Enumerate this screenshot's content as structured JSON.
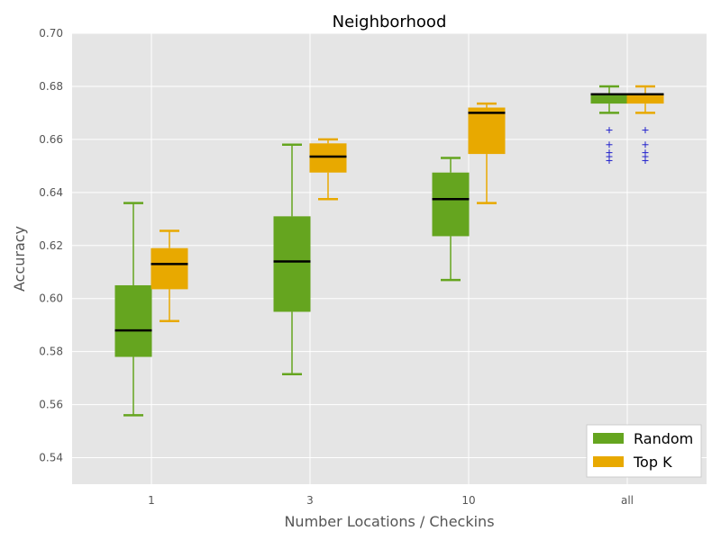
{
  "chart_data": {
    "type": "boxplot",
    "title": "Neighborhood",
    "xlabel": "Number Locations / Checkins",
    "ylabel": "Accuracy",
    "categories": [
      "1",
      "3",
      "10",
      "all"
    ],
    "ylim": [
      0.53,
      0.7
    ],
    "yticks": [
      0.54,
      0.56,
      0.58,
      0.6,
      0.62,
      0.64,
      0.66,
      0.68,
      0.7
    ],
    "ytick_labels": [
      "0.54",
      "0.56",
      "0.58",
      "0.60",
      "0.62",
      "0.64",
      "0.66",
      "0.68",
      "0.70"
    ],
    "grid": true,
    "legend_position": "bottom-right",
    "series": [
      {
        "name": "Random",
        "color": "#65a51f",
        "boxes": [
          {
            "whislo": 0.556,
            "q1": 0.578,
            "med": 0.588,
            "q3": 0.605,
            "whishi": 0.636,
            "fliers": []
          },
          {
            "whislo": 0.5715,
            "q1": 0.595,
            "med": 0.614,
            "q3": 0.631,
            "whishi": 0.658,
            "fliers": []
          },
          {
            "whislo": 0.607,
            "q1": 0.6235,
            "med": 0.6375,
            "q3": 0.6475,
            "whishi": 0.653,
            "fliers": []
          },
          {
            "whislo": 0.67,
            "q1": 0.6735,
            "med": 0.677,
            "q3": 0.677,
            "whishi": 0.68,
            "fliers": [
              0.6635,
              0.658,
              0.655,
              0.6535,
              0.652
            ]
          }
        ]
      },
      {
        "name": "Top K",
        "color": "#e8a900",
        "boxes": [
          {
            "whislo": 0.5915,
            "q1": 0.6035,
            "med": 0.613,
            "q3": 0.619,
            "whishi": 0.6255,
            "fliers": []
          },
          {
            "whislo": 0.6375,
            "q1": 0.6475,
            "med": 0.6535,
            "q3": 0.6585,
            "whishi": 0.66,
            "fliers": []
          },
          {
            "whislo": 0.636,
            "q1": 0.6545,
            "med": 0.67,
            "q3": 0.672,
            "whishi": 0.6735,
            "fliers": []
          },
          {
            "whislo": 0.67,
            "q1": 0.6735,
            "med": 0.677,
            "q3": 0.677,
            "whishi": 0.68,
            "fliers": [
              0.6635,
              0.658,
              0.655,
              0.6535,
              0.652
            ]
          }
        ]
      }
    ],
    "colors": {
      "plot_background": "#e5e5e5",
      "grid": "#ffffff",
      "median": "#000000",
      "flier": "#2222cc"
    }
  }
}
